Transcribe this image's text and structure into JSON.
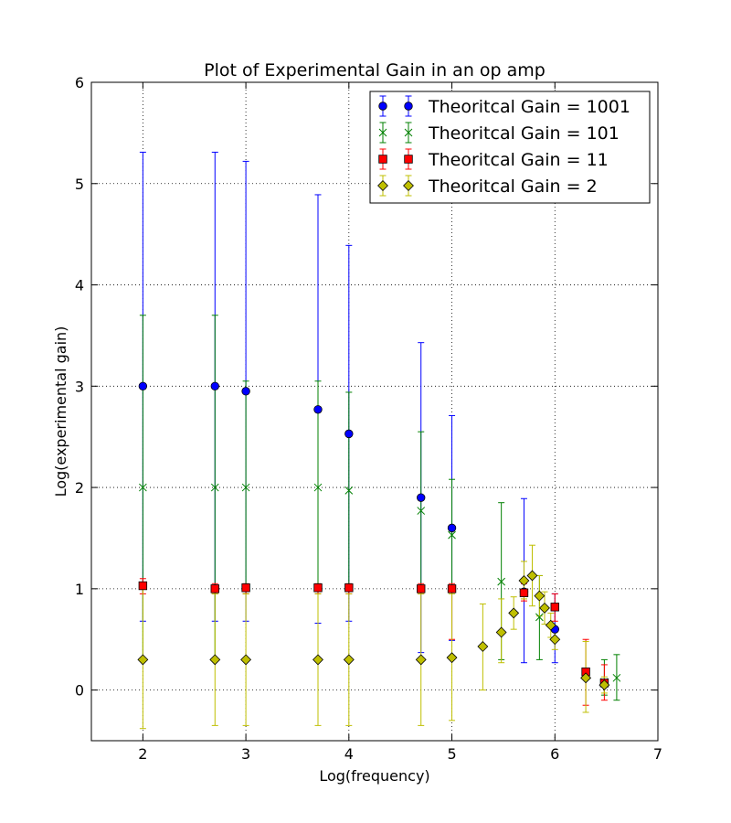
{
  "chart_data": {
    "type": "scatter",
    "title": "Plot of Experimental Gain in an op amp",
    "xlabel": "Log(frequency)",
    "ylabel": "Log(experimental gain)",
    "xlim": [
      1.5,
      7
    ],
    "ylim": [
      -0.5,
      6
    ],
    "xticks": [
      2,
      3,
      4,
      5,
      6,
      7
    ],
    "yticks": [
      0,
      1,
      2,
      3,
      4,
      5,
      6
    ],
    "grid": true,
    "grid_style": "dotted",
    "legend_position": "top-right",
    "error_bars": true,
    "series": [
      {
        "name": "Theoritcal Gain = 1001",
        "color": "#0000ff",
        "errcolor": "#0000ff",
        "marker": "circle",
        "points": [
          {
            "x": 2.0,
            "y": 3.0,
            "lo": 0.68,
            "hi": 5.31
          },
          {
            "x": 2.7,
            "y": 3.0,
            "lo": 0.68,
            "hi": 5.31
          },
          {
            "x": 3.0,
            "y": 2.95,
            "lo": 0.68,
            "hi": 5.22
          },
          {
            "x": 3.7,
            "y": 2.77,
            "lo": 0.66,
            "hi": 4.89
          },
          {
            "x": 4.0,
            "y": 2.53,
            "lo": 0.68,
            "hi": 4.39
          },
          {
            "x": 4.7,
            "y": 1.9,
            "lo": 0.37,
            "hi": 3.43
          },
          {
            "x": 5.0,
            "y": 1.6,
            "lo": 0.49,
            "hi": 2.71
          },
          {
            "x": 5.7,
            "y": 0.97,
            "lo": 0.27,
            "hi": 1.89
          },
          {
            "x": 6.0,
            "y": 0.6,
            "lo": 0.27,
            "hi": 0.95
          }
        ]
      },
      {
        "name": "Theoritcal Gain = 101",
        "color": "#008000",
        "errcolor": "#008000",
        "marker": "x",
        "points": [
          {
            "x": 2.0,
            "y": 2.0,
            "lo": 0.3,
            "hi": 3.7
          },
          {
            "x": 2.7,
            "y": 2.0,
            "lo": 0.3,
            "hi": 3.7
          },
          {
            "x": 3.0,
            "y": 2.0,
            "lo": 0.95,
            "hi": 3.05
          },
          {
            "x": 3.7,
            "y": 2.0,
            "lo": 0.95,
            "hi": 3.05
          },
          {
            "x": 4.0,
            "y": 1.97,
            "lo": 1.0,
            "hi": 2.94
          },
          {
            "x": 4.7,
            "y": 1.77,
            "lo": 1.0,
            "hi": 2.55
          },
          {
            "x": 5.0,
            "y": 1.53,
            "lo": 0.98,
            "hi": 2.08
          },
          {
            "x": 5.48,
            "y": 1.07,
            "lo": 0.3,
            "hi": 1.85
          },
          {
            "x": 5.85,
            "y": 0.72,
            "lo": 0.3,
            "hi": 1.13
          },
          {
            "x": 6.48,
            "y": 0.08,
            "lo": -0.05,
            "hi": 0.3
          },
          {
            "x": 6.6,
            "y": 0.12,
            "lo": -0.1,
            "hi": 0.35
          }
        ]
      },
      {
        "name": "Theoritcal Gain = 11",
        "color": "#ff0000",
        "errcolor": "#ff0000",
        "marker": "square",
        "points": [
          {
            "x": 2.0,
            "y": 1.03,
            "lo": 0.95,
            "hi": 1.1
          },
          {
            "x": 2.7,
            "y": 1.0,
            "lo": 0.95,
            "hi": 1.05
          },
          {
            "x": 3.0,
            "y": 1.01,
            "lo": 0.95,
            "hi": 1.05
          },
          {
            "x": 3.7,
            "y": 1.01,
            "lo": 0.95,
            "hi": 1.05
          },
          {
            "x": 4.0,
            "y": 1.01,
            "lo": 0.95,
            "hi": 1.05
          },
          {
            "x": 4.7,
            "y": 1.0,
            "lo": 0.95,
            "hi": 1.05
          },
          {
            "x": 5.0,
            "y": 1.0,
            "lo": 0.5,
            "hi": 1.05
          },
          {
            "x": 5.7,
            "y": 0.96,
            "lo": 0.88,
            "hi": 1.05
          },
          {
            "x": 6.0,
            "y": 0.82,
            "lo": 0.68,
            "hi": 0.95
          },
          {
            "x": 6.3,
            "y": 0.18,
            "lo": -0.15,
            "hi": 0.5
          },
          {
            "x": 6.48,
            "y": 0.07,
            "lo": -0.1,
            "hi": 0.25
          }
        ]
      },
      {
        "name": "Theoritcal Gain = 2",
        "color": "#bfbf00",
        "errcolor": "#bfbf00",
        "marker": "diamond",
        "points": [
          {
            "x": 2.0,
            "y": 0.3,
            "lo": -0.38,
            "hi": 1.0
          },
          {
            "x": 2.7,
            "y": 0.3,
            "lo": -0.35,
            "hi": 0.95
          },
          {
            "x": 3.0,
            "y": 0.3,
            "lo": -0.35,
            "hi": 0.95
          },
          {
            "x": 3.7,
            "y": 0.3,
            "lo": -0.35,
            "hi": 0.95
          },
          {
            "x": 4.0,
            "y": 0.3,
            "lo": -0.35,
            "hi": 0.95
          },
          {
            "x": 4.7,
            "y": 0.3,
            "lo": -0.35,
            "hi": 0.95
          },
          {
            "x": 5.0,
            "y": 0.32,
            "lo": -0.3,
            "hi": 0.95
          },
          {
            "x": 5.3,
            "y": 0.43,
            "lo": 0.0,
            "hi": 0.85
          },
          {
            "x": 5.48,
            "y": 0.57,
            "lo": 0.27,
            "hi": 0.9
          },
          {
            "x": 5.6,
            "y": 0.76,
            "lo": 0.6,
            "hi": 0.92
          },
          {
            "x": 5.7,
            "y": 1.08,
            "lo": 0.9,
            "hi": 1.27
          },
          {
            "x": 5.78,
            "y": 1.13,
            "lo": 0.83,
            "hi": 1.43
          },
          {
            "x": 5.85,
            "y": 0.93,
            "lo": 0.73,
            "hi": 1.13
          },
          {
            "x": 5.9,
            "y": 0.81,
            "lo": 0.65,
            "hi": 0.97
          },
          {
            "x": 5.96,
            "y": 0.64,
            "lo": 0.52,
            "hi": 0.76
          },
          {
            "x": 6.0,
            "y": 0.5,
            "lo": 0.4,
            "hi": 0.6
          },
          {
            "x": 6.3,
            "y": 0.12,
            "lo": -0.22,
            "hi": 0.48
          },
          {
            "x": 6.48,
            "y": 0.05,
            "lo": -0.03,
            "hi": 0.13
          }
        ]
      }
    ]
  }
}
